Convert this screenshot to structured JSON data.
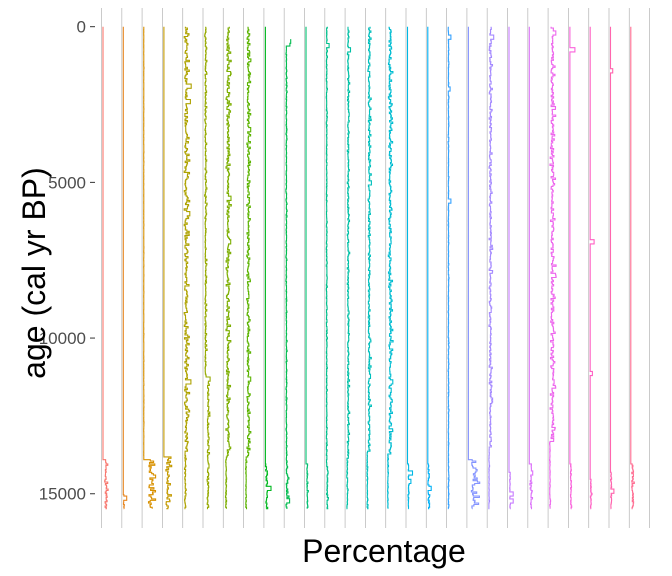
{
  "chart_data": {
    "type": "line",
    "orientation": "vertical stratigraphic diagram (one strip per taxon)",
    "xlabel": "Percentage",
    "ylabel": "age (cal yr BP)",
    "y_reversed": true,
    "ylim": [
      -600,
      16100
    ],
    "yticks": [
      0,
      5000,
      10000,
      15000
    ],
    "ytick_labels": [
      "0",
      "5000",
      "10000",
      "15000"
    ],
    "grid": "vertical lines only (strip separators)",
    "legend": "none",
    "record_start_age": 0,
    "record_end_age": 15500,
    "series": [
      {
        "color": "#F8766D",
        "baseline_late": 0.0,
        "baseline_early": 0.9,
        "noise_late": 0.0,
        "noise_early": 0.6,
        "start_age": 0,
        "onset_age": 13900,
        "spikes": []
      },
      {
        "color": "#E7851E",
        "baseline_late": 0.0,
        "baseline_early": 0.2,
        "noise_late": 0.0,
        "noise_early": 0.2,
        "start_age": 0,
        "onset_age": 15000,
        "spikes": [
          [
            15100,
            1.2
          ]
        ]
      },
      {
        "color": "#D89000",
        "baseline_late": 0.05,
        "baseline_early": 2.2,
        "noise_late": 0.05,
        "noise_early": 2.0,
        "start_age": 0,
        "onset_age": 13900,
        "spikes": []
      },
      {
        "color": "#C49A00",
        "baseline_late": 0.0,
        "baseline_early": 1.3,
        "noise_late": 0.0,
        "noise_early": 1.0,
        "start_age": 0,
        "onset_age": 13800,
        "spikes": []
      },
      {
        "color": "#AEA200",
        "baseline_late": 0.5,
        "baseline_early": 0.3,
        "noise_late": 1.0,
        "noise_early": 0.3,
        "start_age": 0,
        "onset_age": 13600,
        "spikes": [
          [
            1900,
            2.5
          ],
          [
            2400,
            2.2
          ],
          [
            6000,
            2.0
          ],
          [
            11400,
            2.4
          ]
        ]
      },
      {
        "color": "#96A900",
        "baseline_late": 0.3,
        "baseline_early": 1.2,
        "noise_late": 0.4,
        "noise_early": 0.5,
        "start_age": 0,
        "onset_age": 11300,
        "spikes": [
          [
            11300,
            2.0
          ],
          [
            14100,
            1.6
          ]
        ]
      },
      {
        "color": "#7CAE00",
        "baseline_late": 1.0,
        "baseline_early": 0.4,
        "noise_late": 0.9,
        "noise_early": 0.3,
        "start_age": 0,
        "onset_age": 13800,
        "spikes": [
          [
            5500,
            2.2
          ],
          [
            6900,
            2.1
          ]
        ]
      },
      {
        "color": "#5BB300",
        "baseline_late": 1.0,
        "baseline_early": 0.3,
        "noise_late": 0.7,
        "noise_early": 0.2,
        "start_age": 0,
        "onset_age": 13800,
        "spikes": [
          [
            3300,
            2.0
          ],
          [
            11300,
            2.0
          ]
        ]
      },
      {
        "color": "#00B81F",
        "baseline_late": 0.0,
        "baseline_early": 0.3,
        "noise_late": 0.0,
        "noise_early": 0.7,
        "start_age": 0,
        "onset_age": 14000,
        "spikes": [
          [
            14800,
            2.0
          ]
        ]
      },
      {
        "color": "#00BB4E",
        "baseline_late": 0.2,
        "baseline_early": 0.3,
        "noise_late": 0.2,
        "noise_early": 0.7,
        "start_age": 400,
        "onset_age": 14000,
        "spikes": [
          [
            450,
            1.8
          ],
          [
            550,
            1.5
          ],
          [
            15200,
            1.4
          ]
        ]
      },
      {
        "color": "#00BE70",
        "baseline_late": 0.0,
        "baseline_early": 0.4,
        "noise_late": 0.0,
        "noise_early": 0.3,
        "start_age": 0,
        "onset_age": 14000,
        "spikes": []
      },
      {
        "color": "#00BF8C",
        "baseline_late": 0.1,
        "baseline_early": 0.3,
        "noise_late": 0.2,
        "noise_early": 0.3,
        "start_age": 0,
        "onset_age": 14100,
        "spikes": [
          [
            600,
            1.0
          ]
        ]
      },
      {
        "color": "#00C0A5",
        "baseline_late": 0.5,
        "baseline_early": 0.2,
        "noise_late": 0.4,
        "noise_early": 0.3,
        "start_age": 0,
        "onset_age": 13800,
        "spikes": [
          [
            700,
            1.4
          ],
          [
            2800,
            0.9
          ]
        ]
      },
      {
        "color": "#00BFBC",
        "baseline_late": 0.7,
        "baseline_early": 0.1,
        "noise_late": 0.6,
        "noise_early": 0.2,
        "start_age": 0,
        "onset_age": 13600,
        "spikes": [
          [
            5000,
            1.6
          ],
          [
            11200,
            1.3
          ]
        ]
      },
      {
        "color": "#00BCD1",
        "baseline_late": 0.9,
        "baseline_early": 0.2,
        "noise_late": 0.8,
        "noise_early": 0.2,
        "start_age": 0,
        "onset_age": 13700,
        "spikes": [
          [
            11400,
            2.0
          ]
        ]
      },
      {
        "color": "#00B7E4",
        "baseline_late": 0.0,
        "baseline_early": 0.3,
        "noise_late": 0.0,
        "noise_early": 0.2,
        "start_age": 0,
        "onset_age": 14000,
        "spikes": [
          [
            14300,
            1.8
          ],
          [
            14600,
            1.2
          ]
        ]
      },
      {
        "color": "#00B0F6",
        "baseline_late": 0.0,
        "baseline_early": 0.2,
        "noise_late": 0.0,
        "noise_early": 0.5,
        "start_age": 0,
        "onset_age": 14000,
        "spikes": [
          [
            14800,
            1.2
          ]
        ]
      },
      {
        "color": "#35A2FF",
        "baseline_late": 0.1,
        "baseline_early": 0.1,
        "noise_late": 0.15,
        "noise_early": 0.2,
        "start_age": 0,
        "onset_age": 14200,
        "spikes": [
          [
            300,
            1.0
          ],
          [
            2000,
            0.7
          ],
          [
            5600,
            1.0
          ]
        ]
      },
      {
        "color": "#8494FF",
        "baseline_late": 0.0,
        "baseline_early": 1.8,
        "noise_late": 0.0,
        "noise_early": 2.0,
        "start_age": 0,
        "onset_age": 13900,
        "spikes": []
      },
      {
        "color": "#A58AFF",
        "baseline_late": 0.5,
        "baseline_early": 0.1,
        "noise_late": 0.6,
        "noise_early": 0.15,
        "start_age": 0,
        "onset_age": 13500,
        "spikes": [
          [
            300,
            1.8
          ],
          [
            12000,
            1.1
          ]
        ]
      },
      {
        "color": "#C77CFF",
        "baseline_late": 0.0,
        "baseline_early": 0.3,
        "noise_late": 0.0,
        "noise_early": 0.2,
        "start_age": 0,
        "onset_age": 14300,
        "spikes": [
          [
            15000,
            1.5
          ],
          [
            15200,
            1.5
          ]
        ]
      },
      {
        "color": "#DC71FA",
        "baseline_late": 0.0,
        "baseline_early": 0.5,
        "noise_late": 0.0,
        "noise_early": 0.6,
        "start_age": 0,
        "onset_age": 14000,
        "spikes": [
          [
            14300,
            1.2
          ]
        ]
      },
      {
        "color": "#ED68ED",
        "baseline_late": 0.8,
        "baseline_early": 0.1,
        "noise_late": 1.0,
        "noise_early": 0.2,
        "start_age": 0,
        "onset_age": 13300,
        "spikes": [
          [
            200,
            2.2
          ],
          [
            11400,
            1.6
          ]
        ]
      },
      {
        "color": "#FA62DB",
        "baseline_late": 0.0,
        "baseline_early": 0.3,
        "noise_late": 0.0,
        "noise_early": 0.3,
        "start_age": 0,
        "onset_age": 14000,
        "spikes": [
          [
            700,
            1.8
          ]
        ]
      },
      {
        "color": "#FF61C3",
        "baseline_late": 0.0,
        "baseline_early": 0.2,
        "noise_late": 0.0,
        "noise_early": 0.3,
        "start_age": 0,
        "onset_age": 14500,
        "spikes": [
          [
            6900,
            1.4
          ],
          [
            11100,
            0.8
          ]
        ]
      },
      {
        "color": "#FF65AE",
        "baseline_late": 0.0,
        "baseline_early": 0.2,
        "noise_late": 0.0,
        "noise_early": 0.3,
        "start_age": 0,
        "onset_age": 14300,
        "spikes": [
          [
            1400,
            0.8
          ],
          [
            14900,
            1.2
          ]
        ]
      },
      {
        "color": "#FF6C91",
        "baseline_late": 0.0,
        "baseline_early": 0.6,
        "noise_late": 0.0,
        "noise_early": 0.5,
        "start_age": 0,
        "onset_age": 14000,
        "spikes": []
      }
    ]
  }
}
